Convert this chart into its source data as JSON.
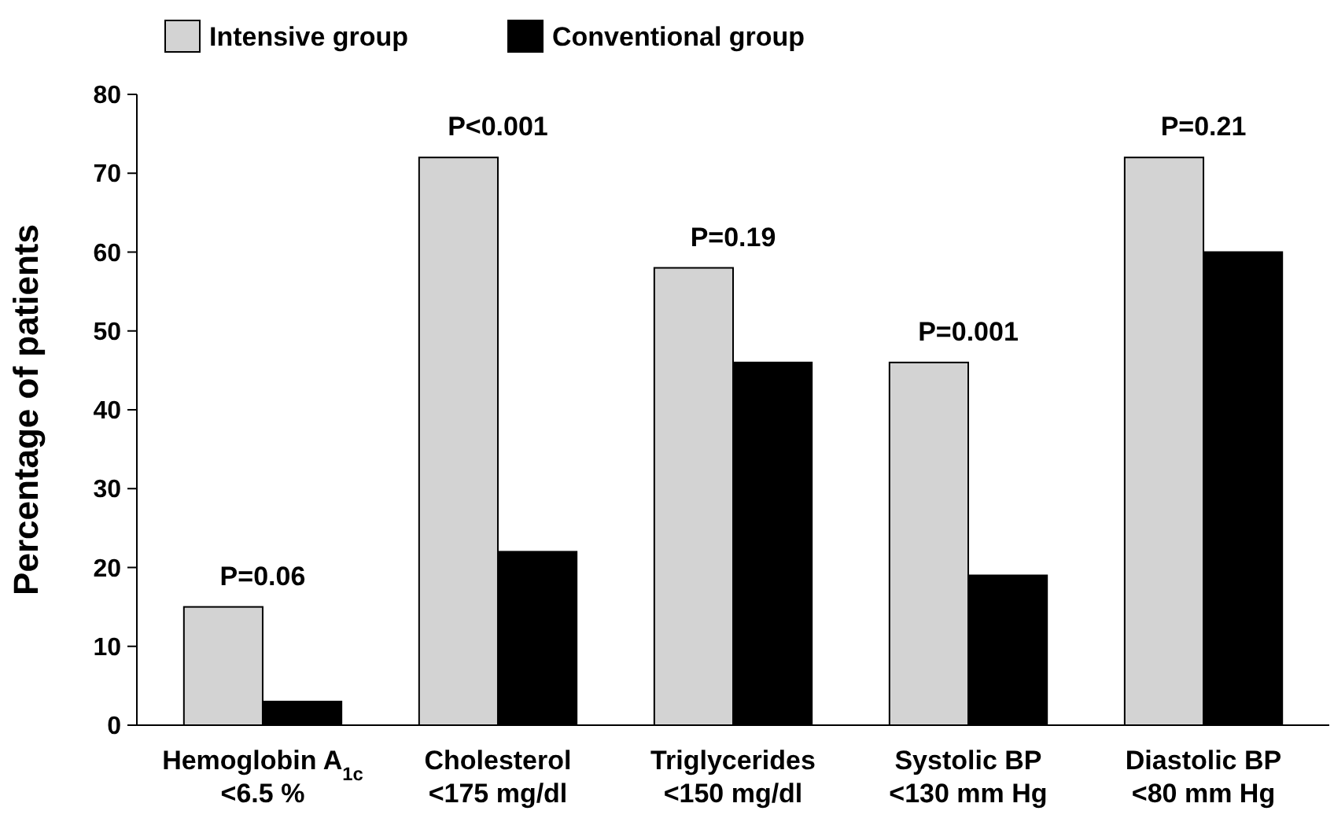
{
  "chart_data": {
    "type": "bar",
    "ylabel": "Percentage of patients",
    "categories": [
      "Hemoglobin A$_{1c}$\n<6.5 %",
      "Cholesterol\n<175 mg/dl",
      "Triglycerides\n<150 mg/dl",
      "Systolic BP\n<130 mm Hg",
      "Diastolic BP\n<80 mm Hg"
    ],
    "series": [
      {
        "name": "Intensive group",
        "color": "#d3d3d3",
        "values": [
          15,
          72,
          58,
          46,
          72
        ]
      },
      {
        "name": "Conventional group",
        "color": "#000000",
        "values": [
          3,
          22,
          46,
          19,
          60
        ]
      }
    ],
    "ylim": [
      0,
      80
    ],
    "yticks": [
      0,
      10,
      20,
      30,
      40,
      50,
      60,
      70,
      80
    ],
    "grid": false,
    "legend": "top left",
    "annotations": [
      {
        "text": "P=0.06",
        "x": "Hemoglobin A$_{1c}$\n<6.5 %",
        "y": 15
      },
      {
        "text": "P<0.001",
        "x": "Cholesterol\n<175 mg/dl",
        "y": 72
      },
      {
        "text": "P=0.19",
        "x": "Triglycerides\n<150 mg/dl",
        "y": 58
      },
      {
        "text": "P=0.001",
        "x": "Systolic BP\n<130 mm Hg",
        "y": 46
      },
      {
        "text": "P=0.21",
        "x": "Diastolic BP\n<80 mm Hg",
        "y": 72
      }
    ]
  }
}
